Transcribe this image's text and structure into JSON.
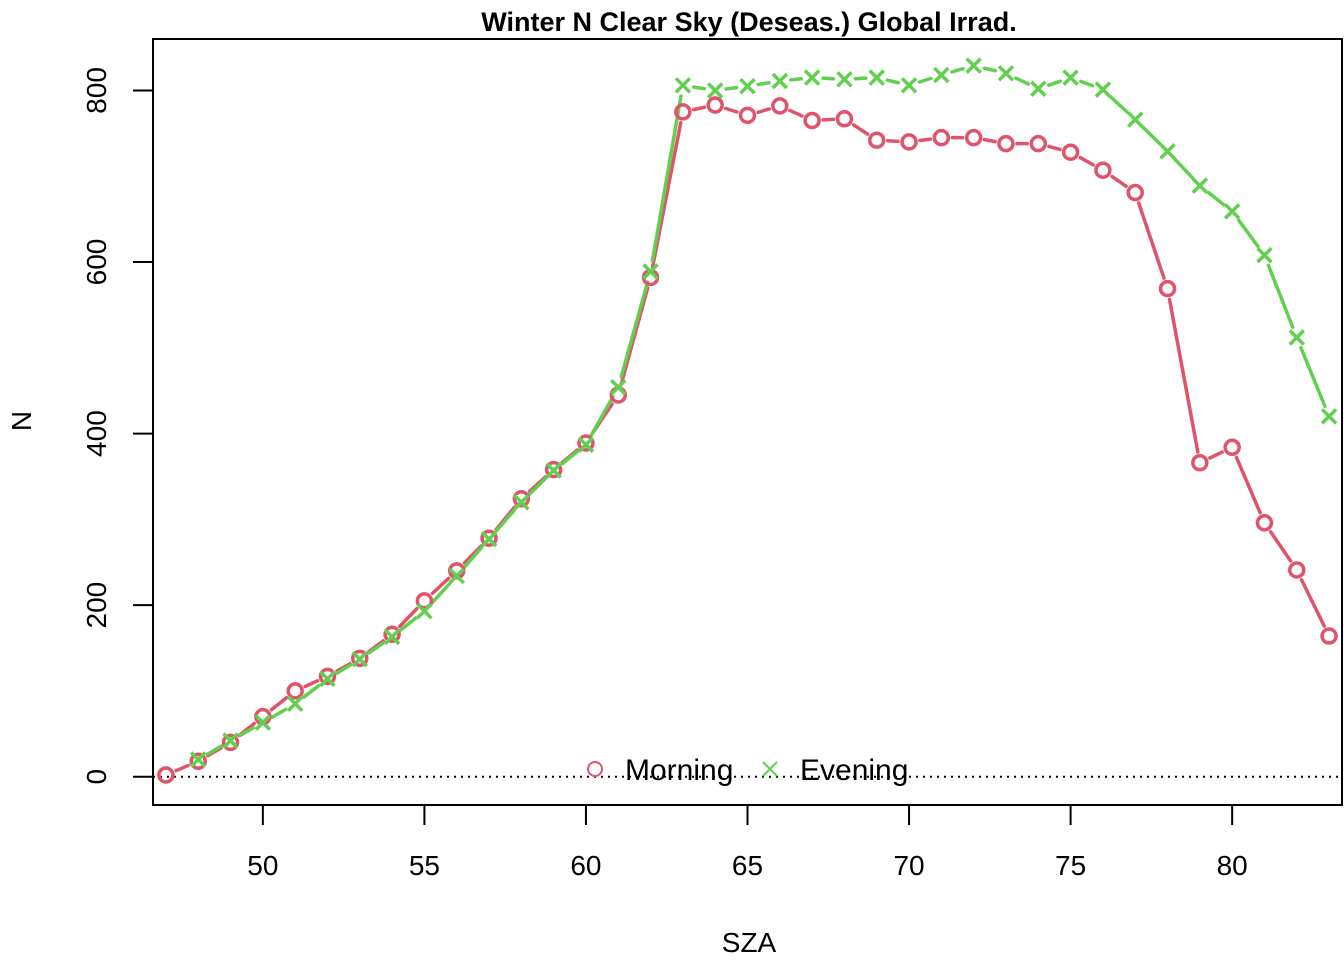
{
  "chart_data": {
    "type": "line",
    "title": "Winter N Clear Sky (Deseas.) Global Irrad.",
    "xlabel": "SZA",
    "ylabel": "N",
    "xlim": [
      46.6,
      83.4
    ],
    "ylim": [
      -33,
      860
    ],
    "xticks": [
      50,
      55,
      60,
      65,
      70,
      75,
      80
    ],
    "yticks": [
      0,
      200,
      400,
      600,
      800
    ],
    "reference_line": {
      "y": 0,
      "style": "dotted"
    },
    "legend": {
      "position": "bottom-center",
      "entries": [
        "Morning",
        "Evening"
      ]
    },
    "series": [
      {
        "name": "Morning",
        "color": "#DF536B",
        "marker": "circle",
        "x": [
          47,
          48,
          49,
          50,
          51,
          52,
          53,
          54,
          55,
          56,
          57,
          58,
          59,
          60,
          61,
          62,
          63,
          64,
          65,
          66,
          67,
          68,
          69,
          70,
          71,
          72,
          73,
          74,
          75,
          76,
          77,
          78,
          79,
          80,
          81,
          82,
          83
        ],
        "y": [
          2,
          18,
          40,
          70,
          100,
          117,
          138,
          166,
          205,
          240,
          278,
          324,
          358,
          389,
          445,
          582,
          775,
          783,
          771,
          782,
          765,
          767,
          742,
          740,
          745,
          745,
          738,
          738,
          728,
          707,
          681,
          569,
          366,
          384,
          296,
          241,
          164
        ]
      },
      {
        "name": "Evening",
        "color": "#61D04F",
        "marker": "x",
        "x": [
          48,
          49,
          50,
          51,
          52,
          53,
          54,
          55,
          56,
          57,
          58,
          59,
          60,
          61,
          62,
          63,
          64,
          65,
          66,
          67,
          68,
          69,
          70,
          71,
          72,
          73,
          74,
          75,
          76,
          77,
          78,
          79,
          80,
          81,
          82,
          83
        ],
        "y": [
          20,
          42,
          63,
          85,
          114,
          137,
          163,
          193,
          234,
          277,
          320,
          357,
          387,
          454,
          589,
          806,
          800,
          805,
          811,
          815,
          813,
          815,
          806,
          818,
          829,
          820,
          802,
          815,
          801,
          766,
          729,
          689,
          659,
          608,
          512,
          420
        ]
      }
    ]
  }
}
